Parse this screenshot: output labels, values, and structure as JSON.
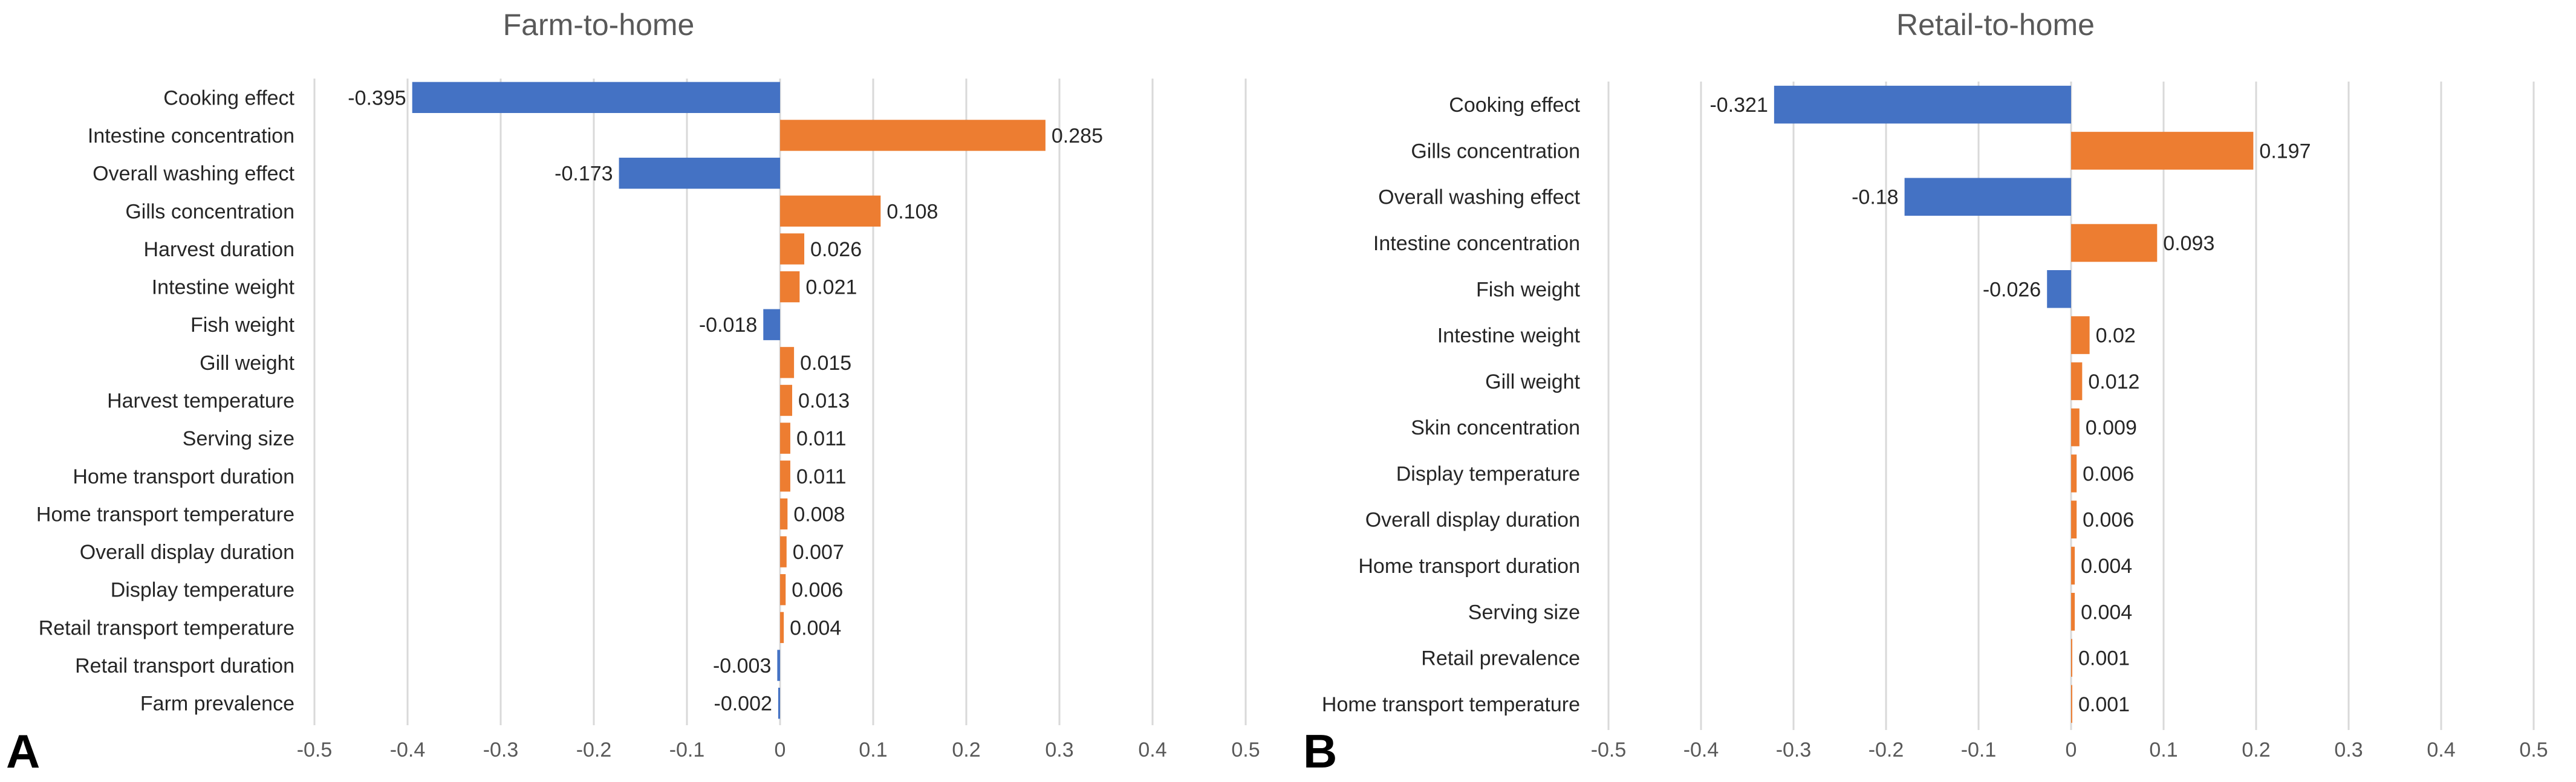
{
  "colors": {
    "positive": "#ED7D31",
    "negative": "#4472C4",
    "grid": "#D9D9D9"
  },
  "chart_data": [
    {
      "type": "bar",
      "orientation": "horizontal",
      "panel_label": "A",
      "title": "Farm-to-home",
      "categories": [
        "Cooking effect",
        "Intestine concentration",
        "Overall washing effect",
        "Gills concentration",
        "Harvest duration",
        "Intestine weight",
        "Fish weight",
        "Gill weight",
        "Harvest temperature",
        "Serving size",
        "Home transport duration",
        "Home transport temperature",
        "Overall display duration",
        "Display temperature",
        "Retail transport temperature",
        "Retail transport duration",
        "Farm prevalence"
      ],
      "values": [
        -0.395,
        0.285,
        -0.173,
        0.108,
        0.026,
        0.021,
        -0.018,
        0.015,
        0.013,
        0.011,
        0.011,
        0.008,
        0.007,
        0.006,
        0.004,
        -0.003,
        -0.002
      ],
      "xlim": [
        -0.5,
        0.5
      ],
      "xticks": [
        "-0.5",
        "-0.4",
        "-0.3",
        "-0.2",
        "-0.1",
        "0",
        "0.1",
        "0.2",
        "0.3",
        "0.4",
        "0.5"
      ],
      "grid": true
    },
    {
      "type": "bar",
      "orientation": "horizontal",
      "panel_label": "B",
      "title": "Retail-to-home",
      "categories": [
        "Cooking effect",
        "Gills concentration",
        "Overall washing effect",
        "Intestine concentration",
        "Fish weight",
        "Intestine weight",
        "Gill weight",
        "Skin concentration",
        "Display temperature",
        "Overall display duration",
        "Home transport duration",
        "Serving size",
        "Retail prevalence",
        "Home transport temperature"
      ],
      "values": [
        -0.321,
        0.197,
        -0.18,
        0.093,
        -0.026,
        0.02,
        0.012,
        0.009,
        0.006,
        0.006,
        0.004,
        0.004,
        0.001,
        0.001
      ],
      "xlim": [
        -0.5,
        0.5
      ],
      "xticks": [
        "-0.5",
        "-0.4",
        "-0.3",
        "-0.2",
        "-0.1",
        "0",
        "0.1",
        "0.2",
        "0.3",
        "0.4",
        "0.5"
      ],
      "grid": true
    }
  ]
}
